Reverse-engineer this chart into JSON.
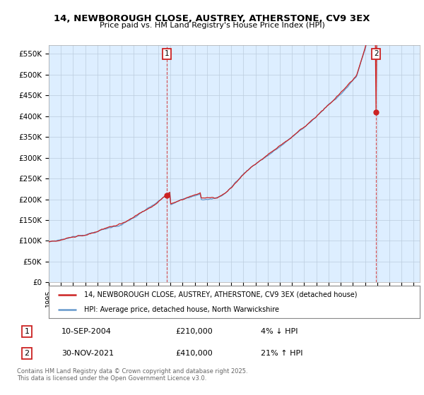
{
  "title_line1": "14, NEWBOROUGH CLOSE, AUSTREY, ATHERSTONE, CV9 3EX",
  "title_line2": "Price paid vs. HM Land Registry's House Price Index (HPI)",
  "ylabel_ticks": [
    "£0",
    "£50K",
    "£100K",
    "£150K",
    "£200K",
    "£250K",
    "£300K",
    "£350K",
    "£400K",
    "£450K",
    "£500K",
    "£550K"
  ],
  "ytick_values": [
    0,
    50000,
    100000,
    150000,
    200000,
    250000,
    300000,
    350000,
    400000,
    450000,
    500000,
    550000
  ],
  "ylim": [
    0,
    570000
  ],
  "xlim_start": 1995.0,
  "xlim_end": 2025.5,
  "hpi_color": "#6699cc",
  "price_color": "#cc2222",
  "marker1_x": 2004.7,
  "marker1_y": 210000,
  "marker2_x": 2021.92,
  "marker2_y": 410000,
  "legend_line1": "14, NEWBOROUGH CLOSE, AUSTREY, ATHERSTONE, CV9 3EX (detached house)",
  "legend_line2": "HPI: Average price, detached house, North Warwickshire",
  "table_row1": [
    "1",
    "10-SEP-2004",
    "£210,000",
    "4% ↓ HPI"
  ],
  "table_row2": [
    "2",
    "30-NOV-2021",
    "£410,000",
    "21% ↑ HPI"
  ],
  "footer": "Contains HM Land Registry data © Crown copyright and database right 2025.\nThis data is licensed under the Open Government Licence v3.0.",
  "vline1_x": 2004.7,
  "vline2_x": 2021.92,
  "background_color": "#ffffff",
  "chart_bg_color": "#ddeeff",
  "grid_color": "#bbccdd"
}
